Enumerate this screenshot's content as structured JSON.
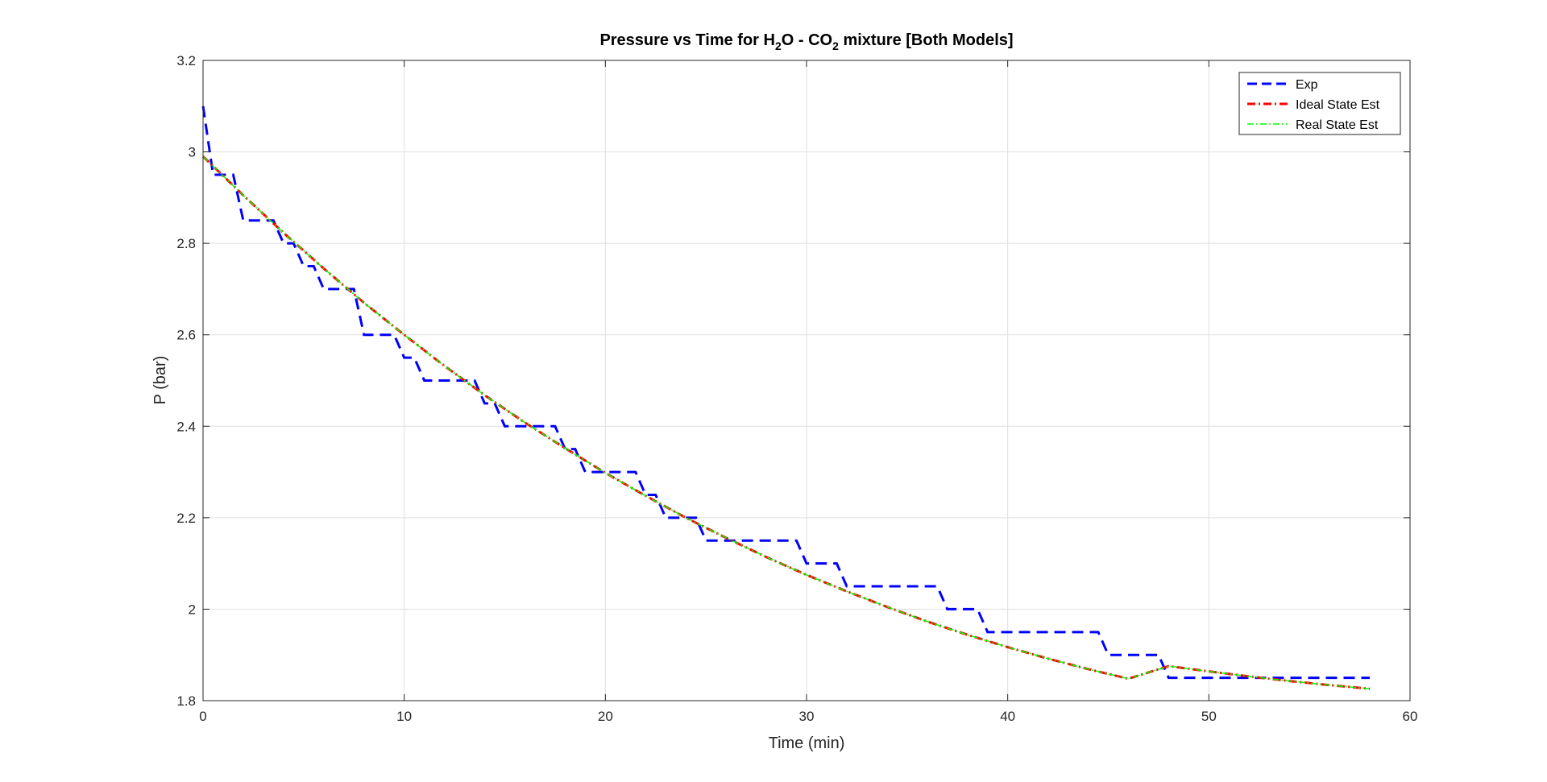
{
  "chart_data": {
    "type": "line",
    "title": {
      "prefix": "Pressure vs Time for H",
      "sub1": "2",
      "middle": "O - CO",
      "sub2": "2",
      "suffix": " mixture [Both Models]"
    },
    "xlabel": "Time (min)",
    "ylabel": "P (bar)",
    "xlim": [
      0,
      60
    ],
    "ylim": [
      1.8,
      3.2
    ],
    "xticks": [
      0,
      10,
      20,
      30,
      40,
      50,
      60
    ],
    "yticks": [
      1.8,
      2,
      2.2,
      2.4,
      2.6,
      2.8,
      3,
      3.2
    ],
    "xtick_labels": [
      "0",
      "10",
      "20",
      "30",
      "40",
      "50",
      "60"
    ],
    "ytick_labels": [
      "1.8",
      "2",
      "2.2",
      "2.4",
      "2.6",
      "2.8",
      "3",
      "3.2"
    ],
    "grid": true,
    "legend_position": "top-right",
    "series": [
      {
        "name": "Exp",
        "color": "#0000ff",
        "style": "dashed",
        "x": [
          0,
          0.5,
          1,
          2,
          3,
          4,
          5,
          6,
          7,
          8,
          9,
          10,
          11,
          12,
          13,
          14,
          15,
          16,
          17,
          18,
          19,
          20,
          21,
          22,
          23,
          24,
          25,
          26,
          27,
          28,
          29,
          30,
          31,
          32,
          33,
          34,
          35,
          36,
          37,
          38,
          39,
          40,
          41,
          42,
          43,
          44,
          45,
          46,
          47,
          48,
          49,
          50,
          51,
          52,
          53,
          54,
          55,
          56,
          57,
          58
        ],
        "y": [
          3.1,
          2.95,
          2.95,
          2.85,
          2.85,
          2.8,
          2.75,
          2.7,
          2.7,
          2.6,
          2.6,
          2.55,
          2.5,
          2.5,
          2.5,
          2.45,
          2.4,
          2.4,
          2.4,
          2.35,
          2.3,
          2.3,
          2.3,
          2.25,
          2.2,
          2.2,
          2.15,
          2.15,
          2.15,
          2.15,
          2.15,
          2.1,
          2.1,
          2.05,
          2.05,
          2.05,
          2.05,
          2.05,
          2.0,
          2.0,
          1.95,
          1.95,
          1.95,
          1.95,
          1.95,
          1.95,
          1.9,
          1.9,
          1.9,
          1.85,
          1.85,
          1.85,
          1.85,
          1.85,
          1.85,
          1.85,
          1.85,
          1.85,
          1.85,
          1.85
        ]
      },
      {
        "name": "Ideal State Est",
        "color": "#ff0000",
        "style": "dashdot",
        "x": [
          0,
          2,
          4,
          6,
          8,
          10,
          12,
          14,
          16,
          18,
          20,
          22,
          24,
          26,
          28,
          30,
          32,
          34,
          36,
          38,
          40,
          42,
          44,
          46,
          48,
          50,
          52,
          54,
          56,
          58
        ],
        "y": [
          2.99,
          2.905,
          2.823,
          2.745,
          2.67,
          2.6,
          2.532,
          2.468,
          2.408,
          2.352,
          2.298,
          2.248,
          2.2,
          2.156,
          2.114,
          2.075,
          2.039,
          2.005,
          1.973,
          1.944,
          1.917,
          1.892,
          1.869,
          1.848,
          1.8755,
          1.864,
          1.853,
          1.843,
          1.834,
          1.826
        ]
      },
      {
        "name": "Real State Est",
        "color": "#00ff00",
        "style": "dashdot",
        "x": [
          0,
          2,
          4,
          6,
          8,
          10,
          12,
          14,
          16,
          18,
          20,
          22,
          24,
          26,
          28,
          30,
          32,
          34,
          36,
          38,
          40,
          42,
          44,
          46,
          48,
          50,
          52,
          54,
          56,
          58
        ],
        "y": [
          2.99,
          2.905,
          2.823,
          2.745,
          2.67,
          2.6,
          2.532,
          2.468,
          2.408,
          2.352,
          2.298,
          2.248,
          2.2,
          2.156,
          2.114,
          2.075,
          2.039,
          2.005,
          1.973,
          1.944,
          1.917,
          1.892,
          1.869,
          1.848,
          1.8755,
          1.864,
          1.853,
          1.843,
          1.834,
          1.826
        ]
      }
    ]
  }
}
